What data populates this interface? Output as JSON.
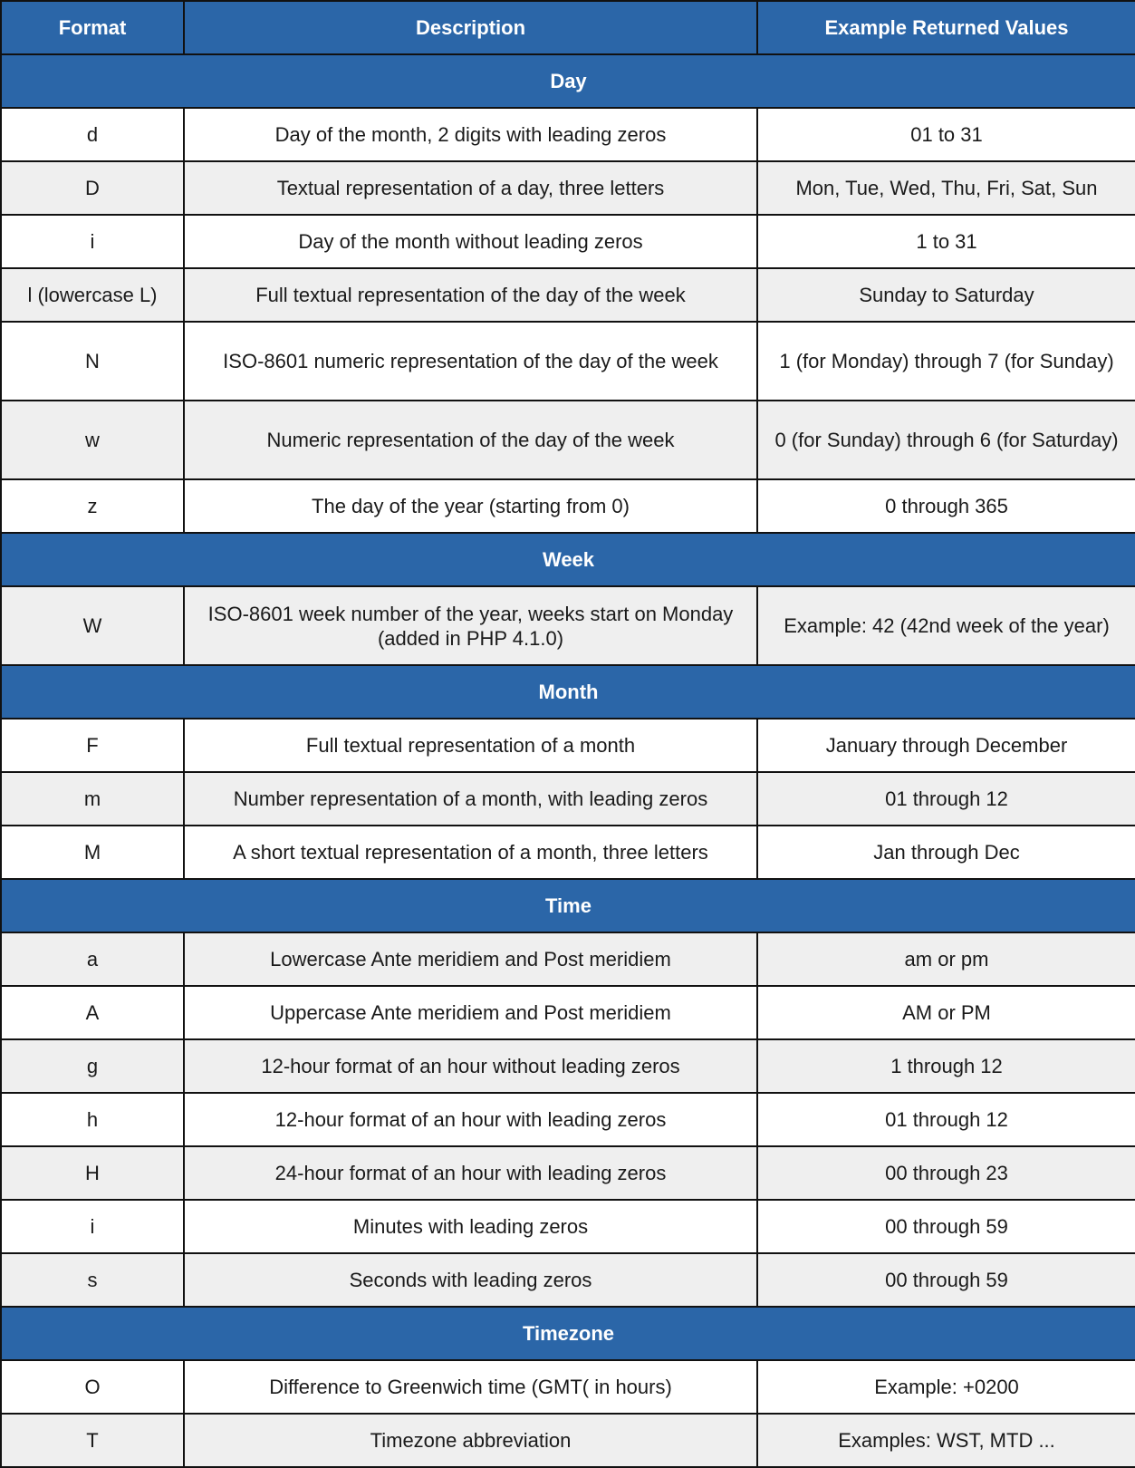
{
  "header": {
    "format": "Format",
    "description": "Description",
    "example": "Example Returned Values"
  },
  "colors": {
    "header_bg": "#2b66a8",
    "alt_row": "#efefef"
  },
  "sections": [
    {
      "title": "Day",
      "rows": [
        {
          "format": "d",
          "description": "Day of the month, 2 digits with leading zeros",
          "example": "01 to 31"
        },
        {
          "format": "D",
          "description": "Textual representation of a day, three letters",
          "example": "Mon, Tue, Wed, Thu, Fri, Sat, Sun"
        },
        {
          "format": "i",
          "description": "Day of the month without leading zeros",
          "example": "1 to 31"
        },
        {
          "format": "l (lowercase L)",
          "description": "Full textual representation of the day of the week",
          "example": "Sunday to Saturday"
        },
        {
          "format": "N",
          "description": "ISO-8601 numeric representation of the day of the week",
          "example": "1 (for Monday) through 7 (for Sunday)"
        },
        {
          "format": "w",
          "description": "Numeric representation of the day of the week",
          "example": "0 (for Sunday) through 6 (for Saturday)"
        },
        {
          "format": "z",
          "description": "The day of the year (starting from 0)",
          "example": "0 through 365"
        }
      ]
    },
    {
      "title": "Week",
      "rows": [
        {
          "format": "W",
          "description": "ISO-8601 week number of the year, weeks start on Monday (added in PHP 4.1.0)",
          "example": "Example: 42 (42nd week of the year)"
        }
      ]
    },
    {
      "title": "Month",
      "rows": [
        {
          "format": "F",
          "description": "Full textual representation of a month",
          "example": "January through December"
        },
        {
          "format": "m",
          "description": "Number representation of a month, with leading zeros",
          "example": "01 through 12"
        },
        {
          "format": "M",
          "description": "A short textual representation of a month, three letters",
          "example": "Jan through Dec"
        }
      ]
    },
    {
      "title": "Time",
      "rows": [
        {
          "format": "a",
          "description": "Lowercase Ante meridiem and Post meridiem",
          "example": "am or pm"
        },
        {
          "format": "A",
          "description": "Uppercase Ante meridiem and Post meridiem",
          "example": "AM or PM"
        },
        {
          "format": "g",
          "description": "12-hour format of an hour without leading zeros",
          "example": "1 through 12"
        },
        {
          "format": "h",
          "description": "12-hour format of an hour with leading zeros",
          "example": "01 through 12"
        },
        {
          "format": "H",
          "description": "24-hour format of an hour with leading zeros",
          "example": "00 through 23"
        },
        {
          "format": "i",
          "description": "Minutes with leading zeros",
          "example": "00 through 59"
        },
        {
          "format": "s",
          "description": "Seconds with leading zeros",
          "example": "00 through 59"
        }
      ]
    },
    {
      "title": "Timezone",
      "rows": [
        {
          "format": "O",
          "description": "Difference to Greenwich time (GMT( in hours)",
          "example": "Example: +0200"
        },
        {
          "format": "T",
          "description": "Timezone abbreviation",
          "example": "Examples: WST, MTD ..."
        }
      ]
    }
  ]
}
